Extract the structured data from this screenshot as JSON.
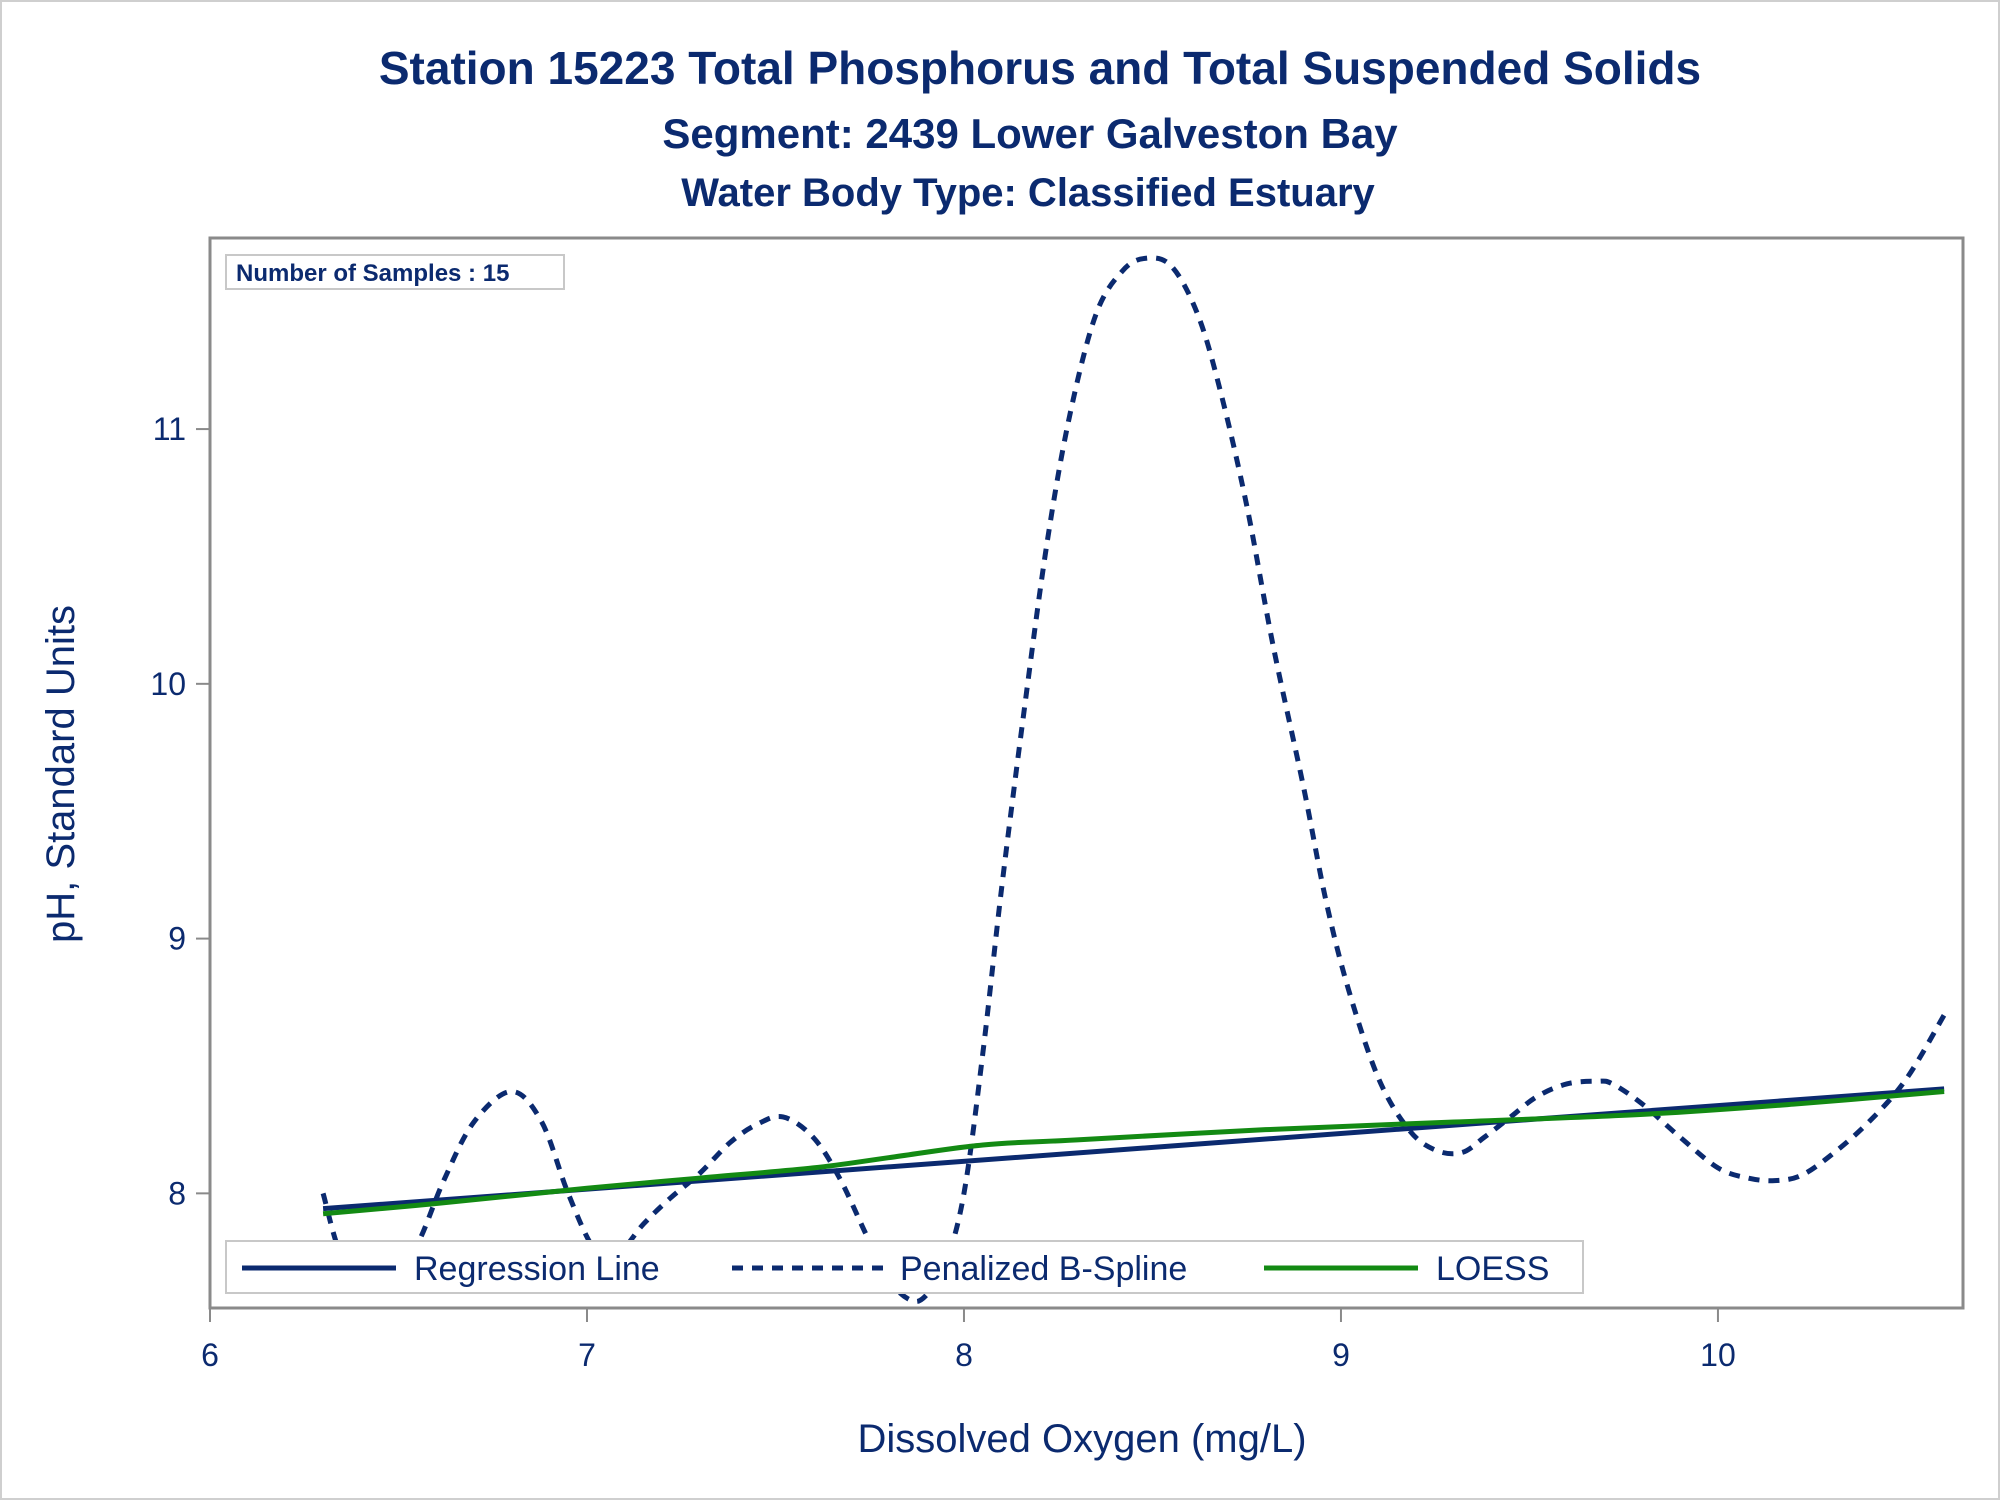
{
  "titles": {
    "line1": "Station 15223  Total Phosphorus and Total Suspended Solids",
    "line2": "Segment: 2439  Lower Galveston Bay",
    "line3": "Water Body Type: Classified Estuary"
  },
  "inset": {
    "text": "Number of Samples : 15"
  },
  "colors": {
    "text": "#0b2a6f",
    "regression": "#0b2a6f",
    "spline": "#0b2a6f",
    "loess": "#138a13",
    "frame": "#8a8a8a"
  },
  "chart_data": {
    "type": "line",
    "xlabel": "Dissolved Oxygen (mg/L)",
    "ylabel": "pH, Standard Units",
    "xlim": [
      6.0,
      10.65
    ],
    "ylim": [
      7.55,
      11.75
    ],
    "xticks": [
      "6",
      "7",
      "8",
      "9",
      "10"
    ],
    "yticks": [
      "8",
      "9",
      "10",
      "11"
    ],
    "legend_position": "bottom-inside",
    "series": [
      {
        "name": "Regression Line",
        "style": "solid",
        "x": [
          6.3,
          10.6
        ],
        "y": [
          7.94,
          8.41
        ]
      },
      {
        "name": "Penalized B-Spline",
        "style": "dashed",
        "x": [
          6.3,
          6.35,
          6.42,
          6.48,
          6.55,
          6.62,
          6.7,
          6.8,
          6.88,
          6.95,
          7.02,
          7.08,
          7.15,
          7.22,
          7.3,
          7.38,
          7.45,
          7.52,
          7.6,
          7.67,
          7.74,
          7.8,
          7.86,
          7.9,
          7.95,
          8.0,
          8.05,
          8.1,
          8.16,
          8.22,
          8.28,
          8.35,
          8.42,
          8.48,
          8.55,
          8.62,
          8.68,
          8.75,
          8.82,
          8.9,
          8.96,
          9.02,
          9.1,
          9.18,
          9.25,
          9.32,
          9.38,
          9.45,
          9.52,
          9.6,
          9.68,
          9.72,
          9.8,
          9.9,
          10.0,
          10.08,
          10.15,
          10.22,
          10.3,
          10.4,
          10.5,
          10.6
        ],
        "y": [
          8.0,
          7.75,
          7.66,
          7.66,
          7.8,
          8.05,
          8.28,
          8.4,
          8.28,
          8.0,
          7.78,
          7.76,
          7.88,
          7.98,
          8.08,
          8.2,
          8.27,
          8.3,
          8.22,
          8.06,
          7.84,
          7.66,
          7.58,
          7.6,
          7.72,
          8.0,
          8.55,
          9.2,
          9.9,
          10.55,
          11.05,
          11.45,
          11.62,
          11.67,
          11.64,
          11.45,
          11.15,
          10.7,
          10.15,
          9.6,
          9.15,
          8.8,
          8.45,
          8.25,
          8.17,
          8.16,
          8.22,
          8.3,
          8.38,
          8.43,
          8.44,
          8.43,
          8.35,
          8.22,
          8.1,
          8.06,
          8.05,
          8.07,
          8.15,
          8.28,
          8.45,
          8.7
        ]
      },
      {
        "name": "LOESS",
        "style": "solid",
        "x": [
          6.3,
          6.6,
          7.0,
          7.3,
          7.6,
          7.8,
          8.05,
          8.3,
          8.8,
          9.3,
          9.8,
          10.2,
          10.6
        ],
        "y": [
          7.92,
          7.96,
          8.02,
          8.06,
          8.1,
          8.14,
          8.19,
          8.21,
          8.25,
          8.28,
          8.31,
          8.35,
          8.4
        ]
      }
    ]
  }
}
